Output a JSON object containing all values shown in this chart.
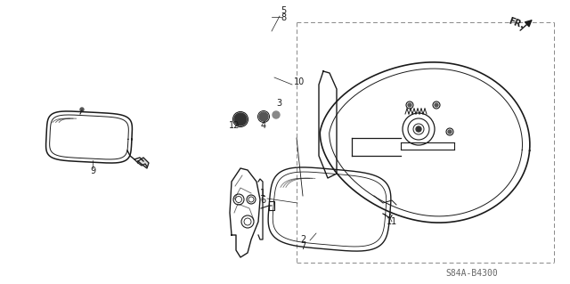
{
  "bg_color": "#ffffff",
  "line_color": "#1a1a1a",
  "watermark": "S84A-B4300",
  "fr_label": "FR.",
  "figsize": [
    6.4,
    3.19
  ],
  "dpi": 100,
  "gray": "#888888"
}
